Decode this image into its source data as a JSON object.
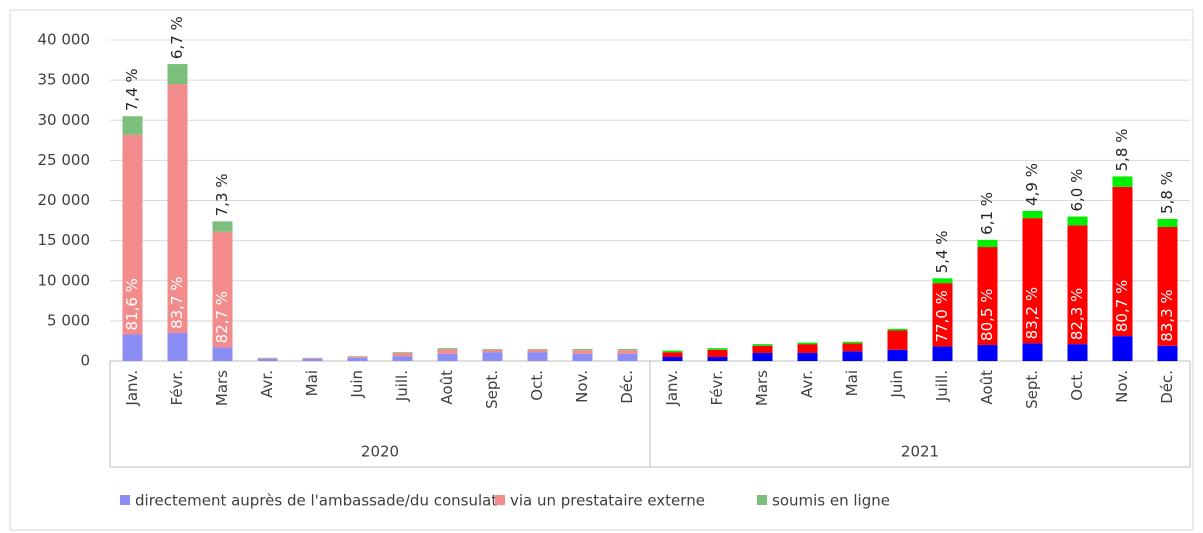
{
  "chart_data": {
    "type": "stacked_bar",
    "groups": [
      {
        "name": "2020",
        "categories": [
          "Janv.",
          "Févr.",
          "Mars",
          "Avr.",
          "Mai",
          "Juin",
          "Juill.",
          "Août",
          "Sept.",
          "Oct.",
          "Nov.",
          "Déc."
        ]
      },
      {
        "name": "2021",
        "categories": [
          "Janv.",
          "Févr.",
          "Mars",
          "Avr.",
          "Mai",
          "Juin",
          "Juill.",
          "Août",
          "Sept.",
          "Oct.",
          "Nov.",
          "Déc."
        ]
      }
    ],
    "series": [
      {
        "name": "directement auprès de l'ambassade/du consulat",
        "colors": [
          "#8c8cf5",
          "#0000ff"
        ],
        "values": [
          3300,
          3500,
          1700,
          250,
          250,
          400,
          600,
          900,
          1100,
          1100,
          900,
          900,
          500,
          500,
          1000,
          1000,
          1200,
          1400,
          1800,
          2000,
          2200,
          2100,
          3100,
          1900
        ],
        "share_labels": [
          null,
          null,
          null,
          null,
          null,
          null,
          null,
          null,
          null,
          null,
          null,
          null,
          null,
          null,
          null,
          null,
          null,
          null,
          null,
          null,
          null,
          null,
          null,
          null
        ]
      },
      {
        "name": "via un prestataire externe",
        "colors": [
          "#f28b8b",
          "#ff0000"
        ],
        "values": [
          24900,
          31000,
          14400,
          100,
          100,
          150,
          400,
          550,
          300,
          300,
          450,
          450,
          600,
          900,
          900,
          1100,
          1000,
          2400,
          7900,
          12200,
          15600,
          14800,
          18600,
          14800
        ],
        "share_labels": [
          "81,6 %",
          "83,7 %",
          "82,7 %",
          null,
          null,
          null,
          null,
          null,
          null,
          null,
          null,
          null,
          null,
          null,
          null,
          null,
          null,
          null,
          "77,0 %",
          "80,5 %",
          "83,2 %",
          "82,3 %",
          "80,7 %",
          "83,3 %"
        ]
      },
      {
        "name": "soumis en ligne",
        "colors": [
          "#7cbf7c",
          "#00ee00"
        ],
        "values": [
          2300,
          2500,
          1300,
          50,
          50,
          50,
          100,
          150,
          100,
          100,
          150,
          150,
          200,
          200,
          200,
          200,
          200,
          200,
          600,
          900,
          900,
          1100,
          1300,
          1000
        ],
        "share_labels": [
          "7,4 %",
          "6,7 %",
          "7,3 %",
          null,
          null,
          null,
          null,
          null,
          null,
          null,
          null,
          null,
          null,
          null,
          null,
          null,
          null,
          null,
          "5,4 %",
          "6,1 %",
          "4,9 %",
          "6,0 %",
          "5,8 %",
          "5,8 %"
        ]
      }
    ],
    "ylim": [
      0,
      40000
    ],
    "yticks": [
      0,
      {
        "value": 5000,
        "label": "5 000"
      },
      {
        "value": 10000,
        "label": "10 000"
      },
      {
        "value": 15000,
        "label": "15 000"
      },
      {
        "value": 20000,
        "label": "20 000"
      },
      {
        "value": 25000,
        "label": "25 000"
      },
      {
        "value": 30000,
        "label": "30 000"
      },
      {
        "value": 35000,
        "label": "35 000"
      },
      {
        "value": 40000,
        "label": "40 000"
      }
    ],
    "grid": true,
    "legend": "bottom"
  }
}
